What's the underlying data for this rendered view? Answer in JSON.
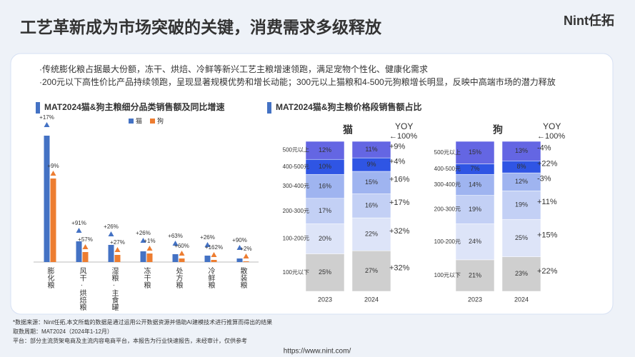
{
  "header": {
    "title": "工艺革新成为市场突破的关键，消费需求多级释放",
    "logo": "Nint任拓"
  },
  "bullets": [
    "·传统膨化粮占据最大份额，冻干、烘焙、冷鲜等新兴工艺主粮增速领跑，满足宠物个性化、健康化需求",
    "·200元以下高性价比产品持续领跑，呈现显著规模优势和增长动能；300元以上猫粮和4-500元狗粮增长明显，反映中高端市场的潜力释放"
  ],
  "chart_data": [
    {
      "type": "bar",
      "title": "MAT2024猫&狗主粮细分品类销售额及同比增速",
      "categories": [
        "膨化粮",
        "风干·烘焙粮",
        "湿粮·主食罐",
        "冻干粮",
        "处方粮",
        "冷鲜粮",
        "散装粮"
      ],
      "ylim": [
        0,
        180
      ],
      "series": [
        {
          "name": "猫",
          "color": "#4472c4",
          "values": [
            177,
            29,
            24,
            15,
            11,
            9,
            5
          ],
          "growth_labels": [
            "+17%",
            "+91%",
            "+26%",
            "+26%",
            "+63%",
            "+26%",
            "+90%"
          ]
        },
        {
          "name": "狗",
          "color": "#ed7d31",
          "values": [
            117,
            14,
            10,
            12,
            5,
            3,
            1
          ],
          "growth_labels": [
            "+9%",
            "+57%",
            "+27%",
            "+1%",
            "+60%",
            "+162%",
            "+2%"
          ]
        }
      ]
    },
    {
      "type": "stacked_bar",
      "title": "MAT2024猫&狗主粮价格段销售额占比",
      "ylim": [
        0,
        100
      ],
      "panels": [
        {
          "title": "猫",
          "categories": [
            "2023",
            "2024"
          ],
          "yoy_title": "YOY",
          "yoy_total": "←100%",
          "series": [
            {
              "name": "100元以下",
              "color": "#cfcfcf",
              "values": [
                25,
                27
              ],
              "value_labels": [
                "25%",
                "27%"
              ]
            },
            {
              "name": "100-200元",
              "color": "#dde4f8",
              "values": [
                20,
                22
              ],
              "value_labels": [
                "20%",
                "22%"
              ]
            },
            {
              "name": "200-300元",
              "color": "#c3d0f5",
              "values": [
                17,
                16
              ],
              "value_labels": [
                "17%",
                "16%"
              ]
            },
            {
              "name": "300-400元",
              "color": "#9fb4f0",
              "values": [
                16,
                15
              ],
              "value_labels": [
                "16%",
                "15%"
              ]
            },
            {
              "name": "400-500元",
              "color": "#2f55e4",
              "values": [
                10,
                9
              ],
              "value_labels": [
                "10%",
                "9%"
              ]
            },
            {
              "name": "500元以上",
              "color": "#6466e3",
              "values": [
                12,
                11
              ],
              "value_labels": [
                "12%",
                "11%"
              ]
            }
          ],
          "yoy_labels": [
            "+32%",
            "+32%",
            "+17%",
            "+16%",
            "+4%",
            "+9%"
          ]
        },
        {
          "title": "狗",
          "categories": [
            "2023",
            "2024"
          ],
          "yoy_title": "YOY",
          "yoy_total": "←100%",
          "series": [
            {
              "name": "100元以下",
              "color": "#cfcfcf",
              "values": [
                21,
                23
              ],
              "value_labels": [
                "21%",
                "23%"
              ]
            },
            {
              "name": "100-200元",
              "color": "#dde4f8",
              "values": [
                24,
                25
              ],
              "value_labels": [
                "24%",
                "25%"
              ]
            },
            {
              "name": "200-300元",
              "color": "#c3d0f5",
              "values": [
                19,
                19
              ],
              "value_labels": [
                "19%",
                "19%"
              ]
            },
            {
              "name": "300-400元",
              "color": "#9fb4f0",
              "values": [
                14,
                12
              ],
              "value_labels": [
                "14%",
                "12%"
              ]
            },
            {
              "name": "400-500元",
              "color": "#2f55e4",
              "values": [
                7,
                8
              ],
              "value_labels": [
                "7%",
                "8%"
              ]
            },
            {
              "name": "500元以上",
              "color": "#6466e3",
              "values": [
                15,
                13
              ],
              "value_labels": [
                "15%",
                "13%"
              ]
            }
          ],
          "yoy_labels": [
            "+22%",
            "+15%",
            "+11%",
            "-3%",
            "+22%",
            "-4%"
          ]
        }
      ]
    }
  ],
  "footer": {
    "notes": [
      "*数据来源：Nint任拓,本文所载的数据是通过运用公开数据资源并借助AI建模技术进行推算而得出的结果",
      "取数周期：MAT2024（2024年1-12月）",
      "平台：部分主流货架电商及主流内容电商平台，本报告为行业快速报告，未经审计，仅供参考"
    ],
    "url": "https://www.nint.com/"
  }
}
